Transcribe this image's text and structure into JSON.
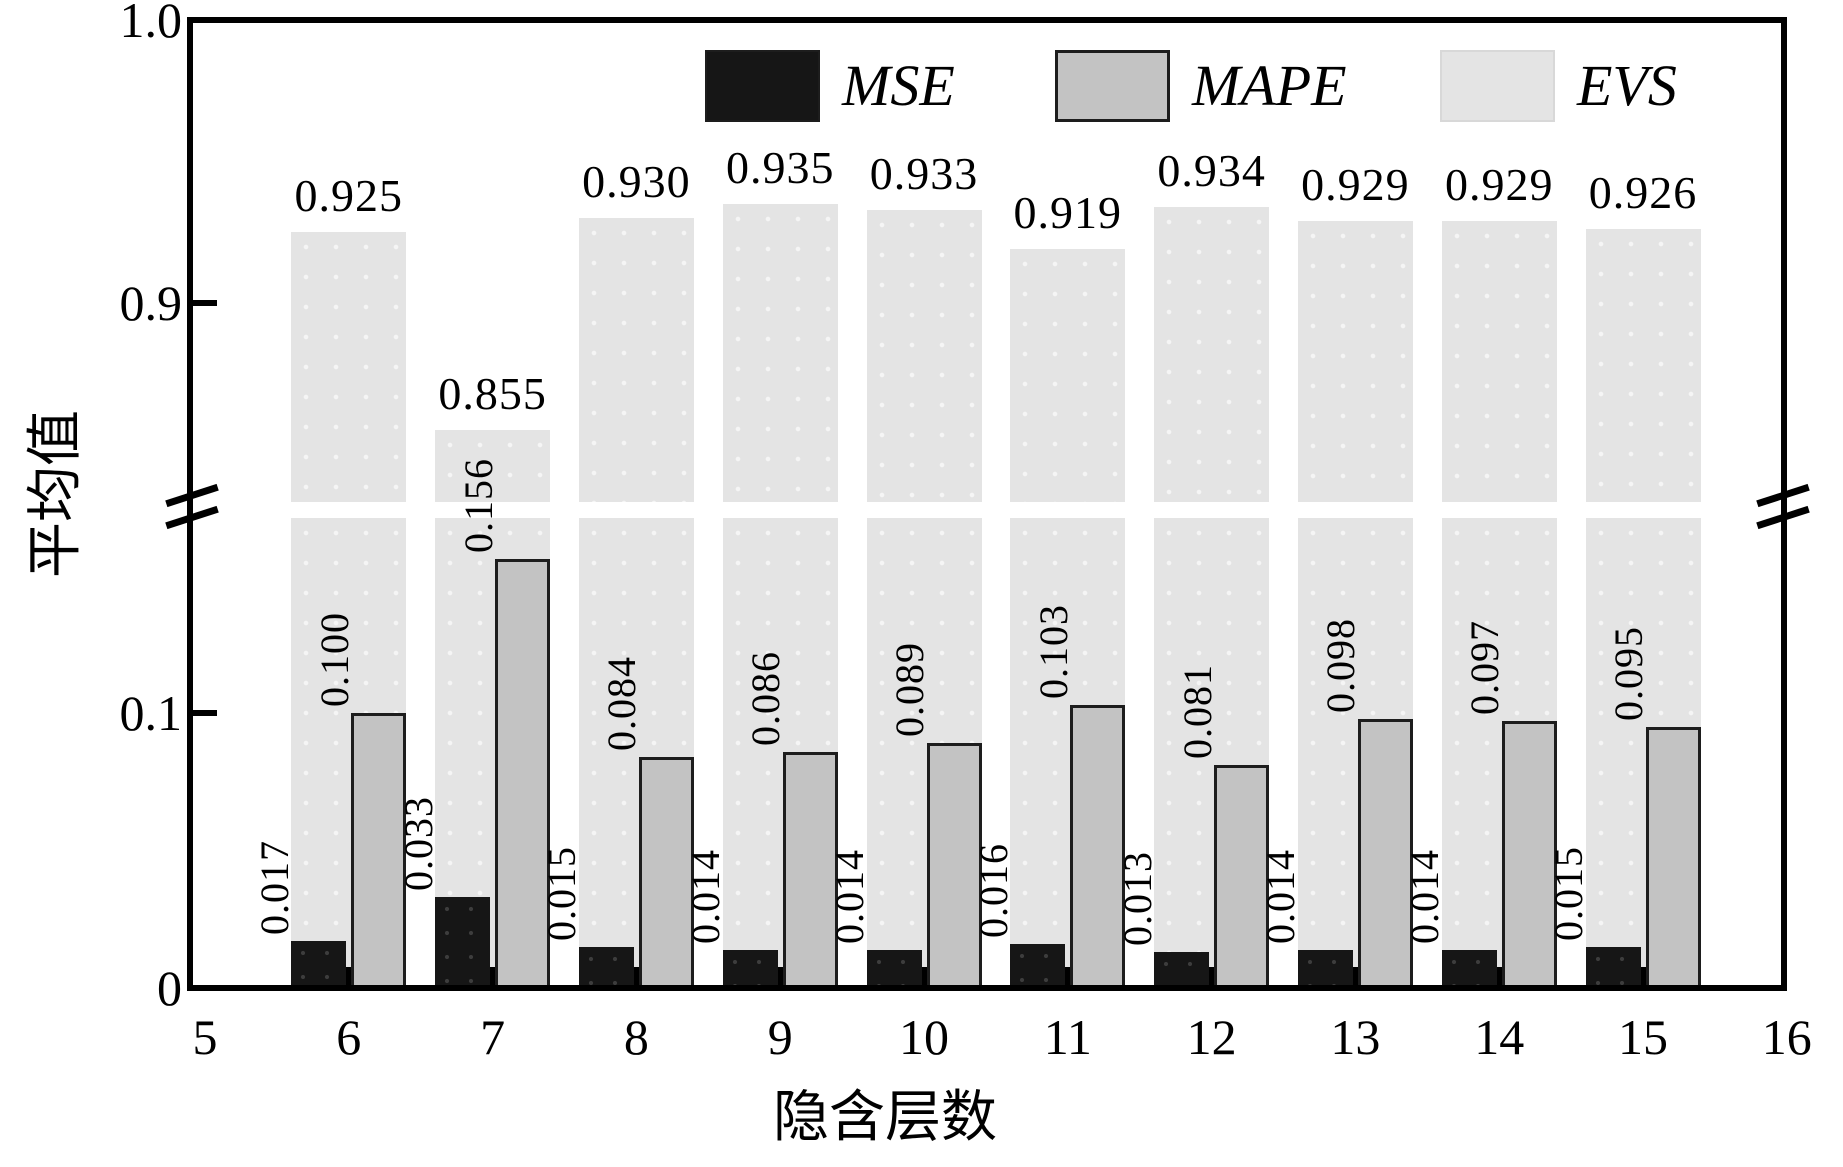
{
  "chart_data": {
    "type": "bar",
    "title": "",
    "xlabel": "隐含层数",
    "ylabel": "平均值",
    "categories": [
      6,
      7,
      8,
      9,
      10,
      11,
      12,
      13,
      14,
      15
    ],
    "series": [
      {
        "name": "MSE",
        "color": "#161616",
        "values": [
          0.017,
          0.033,
          0.015,
          0.014,
          0.014,
          0.016,
          0.013,
          0.014,
          0.014,
          0.015
        ],
        "labels": [
          "0.017",
          "0.033",
          "0.015",
          "0.014",
          "0.014",
          "0.016",
          "0.013",
          "0.014",
          "0.014",
          "0.015"
        ]
      },
      {
        "name": "MAPE",
        "color": "#c3c3c3",
        "values": [
          0.1,
          0.156,
          0.084,
          0.086,
          0.089,
          0.103,
          0.081,
          0.098,
          0.097,
          0.095
        ],
        "labels": [
          "0.100",
          "0.156",
          "0.084",
          "0.086",
          "0.089",
          "0.103",
          "0.081",
          "0.098",
          "0.097",
          "0.095"
        ]
      },
      {
        "name": "EVS",
        "color": "#e4e4e4",
        "values": [
          0.925,
          0.855,
          0.93,
          0.935,
          0.933,
          0.919,
          0.934,
          0.929,
          0.929,
          0.926
        ],
        "labels": [
          "0.925",
          "0.855",
          "0.930",
          "0.935",
          "0.933",
          "0.919",
          "0.934",
          "0.929",
          "0.929",
          "0.926"
        ]
      }
    ],
    "x_ticks": [
      "5",
      "6",
      "7",
      "8",
      "9",
      "10",
      "11",
      "12",
      "13",
      "14",
      "15",
      "16"
    ],
    "y_ticks_lower": [
      {
        "v": 0.0,
        "label": "0",
        "tick": false
      },
      {
        "v": 0.1,
        "label": "0.1",
        "tick": true
      }
    ],
    "y_ticks_upper": [
      {
        "v": 0.9,
        "label": "0.9",
        "tick": true
      },
      {
        "v": 1.0,
        "label": "1.0",
        "tick": false
      }
    ],
    "axis_break": true,
    "ylim_lower": [
      0,
      0.17
    ],
    "ylim_upper": [
      0.83,
      1.0
    ],
    "xlim": [
      5,
      16
    ],
    "grid": false,
    "legend_position": "top"
  }
}
